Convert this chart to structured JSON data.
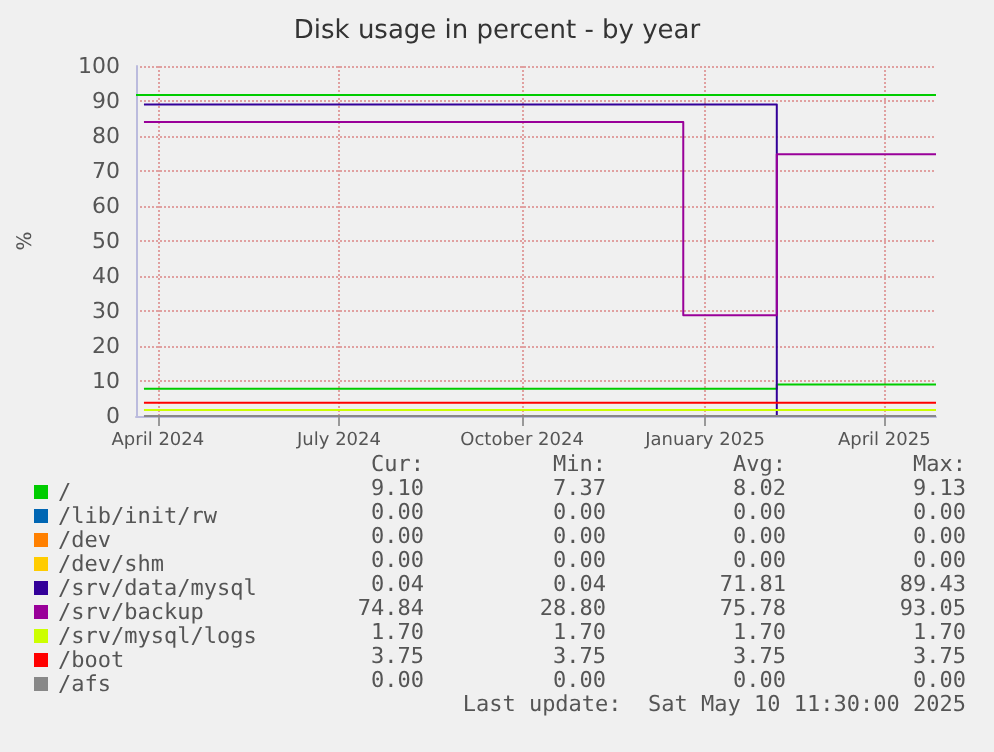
{
  "chart_data": {
    "type": "step",
    "title": "Disk usage in percent - by year",
    "ylabel": "%",
    "xlim": [
      "2024-03-21",
      "2025-04-27"
    ],
    "xticks": [
      {
        "value": "2024-04-01",
        "label": "April 2024"
      },
      {
        "value": "2024-07-01",
        "label": "July 2024"
      },
      {
        "value": "2024-10-01",
        "label": "October 2024"
      },
      {
        "value": "2025-01-01",
        "label": "January 2025"
      },
      {
        "value": "2025-04-01",
        "label": "April 2025"
      }
    ],
    "ylim": [
      0,
      100
    ],
    "yticks": [
      0,
      10,
      20,
      30,
      40,
      50,
      60,
      70,
      80,
      90,
      100
    ],
    "grid": true,
    "legend": "bottom",
    "marker": "none",
    "ref_lines": [
      {
        "axis": "y",
        "value": 92,
        "color": "#00cc00"
      }
    ],
    "series": [
      {
        "name": "/",
        "color": "#00cc00",
        "x": [
          "2024-03-25",
          "2025-02-06",
          "2025-04-27"
        ],
        "values": [
          7.8,
          9.0,
          9.0
        ]
      },
      {
        "name": "/lib/init/rw",
        "color": "#0066b3"
      },
      {
        "name": "/dev",
        "color": "#ff8000"
      },
      {
        "name": "/dev/shm",
        "color": "#ffcc00"
      },
      {
        "name": "/srv/data/mysql",
        "color": "#330099",
        "x": [
          "2024-03-25",
          "2025-02-06",
          "2025-04-27"
        ],
        "values": [
          89.0,
          0,
          0
        ]
      },
      {
        "name": "/srv/backup",
        "color": "#990099",
        "x": [
          "2024-03-25",
          "2024-12-21",
          "2025-02-06",
          "2025-04-27"
        ],
        "values": [
          84,
          28.8,
          74.8,
          74.8
        ]
      },
      {
        "name": "/srv/mysql/logs",
        "color": "#ccff00",
        "x": [
          "2024-03-25",
          "2025-04-27"
        ],
        "values": [
          1.7,
          1.7
        ]
      },
      {
        "name": "/boot",
        "color": "#ff0000",
        "x": [
          "2024-03-25",
          "2025-04-27"
        ],
        "values": [
          3.8,
          3.8
        ]
      },
      {
        "name": "/afs",
        "color": "#888888",
        "x": [
          "2024-03-25",
          "2025-04-27"
        ],
        "values": [
          0,
          0
        ]
      }
    ],
    "annotations": [
      "Cur:",
      "Min:",
      "Avg:",
      "Max:",
      "9.10",
      "7.37",
      "8.02",
      "9.13",
      "0.00",
      "0.00",
      "0.00",
      "0.00",
      "0.00",
      "0.00",
      "0.00",
      "0.00",
      "0.00",
      "0.00",
      "0.00",
      "0.00",
      "0.04",
      "0.04",
      "71.81",
      "89.43",
      "74.84",
      "28.80",
      "75.78",
      "93.05",
      "1.70",
      "1.70",
      "1.70",
      "1.70",
      "3.75",
      "3.75",
      "3.75",
      "3.75",
      "0.00",
      "0.00",
      "0.00",
      "0.00",
      "Last update:  Sat May 10 11:30:00 2025"
    ]
  }
}
